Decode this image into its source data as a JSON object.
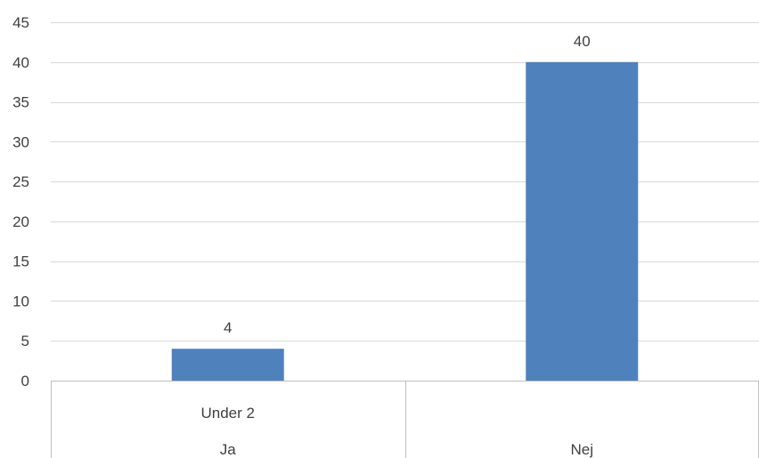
{
  "chart_data": {
    "type": "bar",
    "categories": [
      {
        "group": "Ja",
        "sub": "Under 2"
      },
      {
        "group": "Nej",
        "sub": ""
      }
    ],
    "series": [
      {
        "values": [
          4,
          40
        ]
      }
    ],
    "data_labels": [
      "4",
      "40"
    ],
    "ylim": [
      0,
      45
    ],
    "y_ticks": [
      0,
      5,
      10,
      15,
      20,
      25,
      30,
      35,
      40,
      45
    ],
    "y_tick_labels": [
      "0",
      "5",
      "10",
      "15",
      "20",
      "25",
      "30",
      "35",
      "40",
      "45"
    ],
    "grid": true,
    "legend": "none",
    "title": "",
    "xlabel": "",
    "ylabel": ""
  },
  "colors": {
    "bar": "#4f81bd",
    "grid": "#d9d9d9",
    "axis": "#bfbfbf",
    "text": "#404040"
  }
}
